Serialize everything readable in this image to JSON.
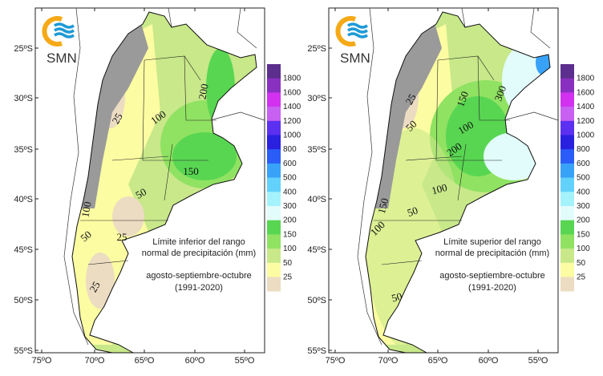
{
  "logo": {
    "text": "SMN",
    "colors": {
      "ring": "#f5a916",
      "waves": "#1e9ad6"
    }
  },
  "lat_labels": [
    "25ºS",
    "30ºS",
    "35ºS",
    "40ºS",
    "45ºS",
    "50ºS",
    "55ºS"
  ],
  "lon_labels": [
    "75ºO",
    "70ºO",
    "65ºO",
    "60ºO",
    "55ºO"
  ],
  "legend": {
    "labels": [
      "1800",
      "1600",
      "1400",
      "1200",
      "1000",
      "800",
      "600",
      "500",
      "400",
      "300",
      "200",
      "150",
      "100",
      "50",
      "25"
    ],
    "colors": [
      "#5c2e8e",
      "#8a30c0",
      "#d232f0",
      "#c860f2",
      "#5c30f0",
      "#2a20e0",
      "#2a5cf8",
      "#38a2f8",
      "#62d2fc",
      "#a4f2fc",
      "#e2fcfc",
      "#58d652",
      "#90e262",
      "#c8e88a",
      "#fcfca2",
      "#ecdcc2"
    ]
  },
  "panels": [
    {
      "caption_line1": "Límite inferior del rango",
      "caption_line2": "normal de precipitación (mm)",
      "period": "agosto-septiembre-octubre",
      "years": "(1991-2020)",
      "contour_labels": [
        "200",
        "25",
        "100",
        "150",
        "50",
        "100",
        "50",
        "25",
        "25"
      ]
    },
    {
      "caption_line1": "Límite superior del rango",
      "caption_line2": "normal de precipitación (mm)",
      "period": "agosto-septiembre-octubre",
      "years": "(1991-2020)",
      "contour_labels": [
        "300",
        "25",
        "150",
        "50",
        "100",
        "200",
        "100",
        "150",
        "100",
        "50",
        "50"
      ]
    }
  ]
}
